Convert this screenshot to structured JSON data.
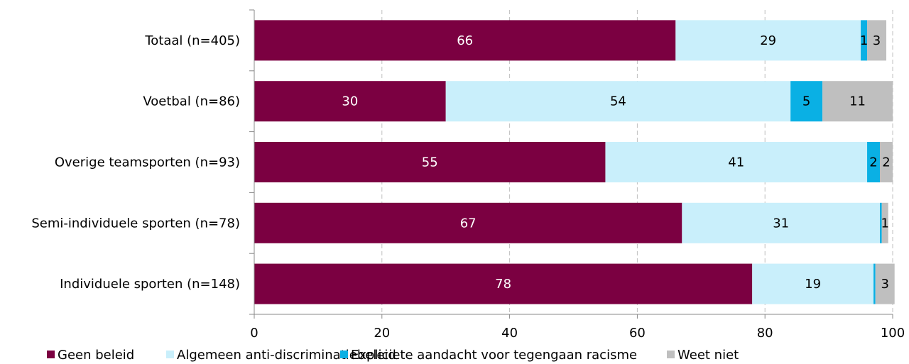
{
  "chart_data": {
    "type": "bar",
    "orientation": "horizontal",
    "stacked": true,
    "categories": [
      "Totaal (n=405)",
      "Voetbal (n=86)",
      "Overige teamsporten (n=93)",
      "Semi-individuele sporten (n=78)",
      "Individuele sporten (n=148)"
    ],
    "series": [
      {
        "name": "Geen beleid",
        "color": "#7b0041",
        "label_color": "#ffffff",
        "values": [
          66,
          30,
          55,
          67,
          78
        ]
      },
      {
        "name": "Algemeen anti-discriminatiebeleid",
        "color": "#c9effb",
        "label_color": "#000000",
        "values": [
          29,
          54,
          41,
          31,
          19
        ]
      },
      {
        "name": "Expliciete aandacht voor tegengaan racisme",
        "color": "#0ab0e4",
        "label_color": "#000000",
        "values": [
          1,
          5,
          2,
          0.3,
          0.3
        ]
      },
      {
        "name": "Weet niet",
        "color": "#bfbfbf",
        "label_color": "#000000",
        "values": [
          3,
          11,
          2,
          1,
          3
        ]
      }
    ],
    "data_labels": [
      [
        "66",
        "30",
        "55",
        "67",
        "78"
      ],
      [
        "29",
        "54",
        "41",
        "31",
        "19"
      ],
      [
        "1",
        "5",
        "2",
        "",
        ""
      ],
      [
        "3",
        "11",
        "2",
        "1",
        "3"
      ]
    ],
    "x_ticks": [
      0,
      20,
      40,
      60,
      80,
      100
    ],
    "xlim": [
      0,
      100
    ],
    "grid": "vertical dashed",
    "legend_position": "bottom",
    "title": "",
    "xlabel": "",
    "ylabel": ""
  }
}
